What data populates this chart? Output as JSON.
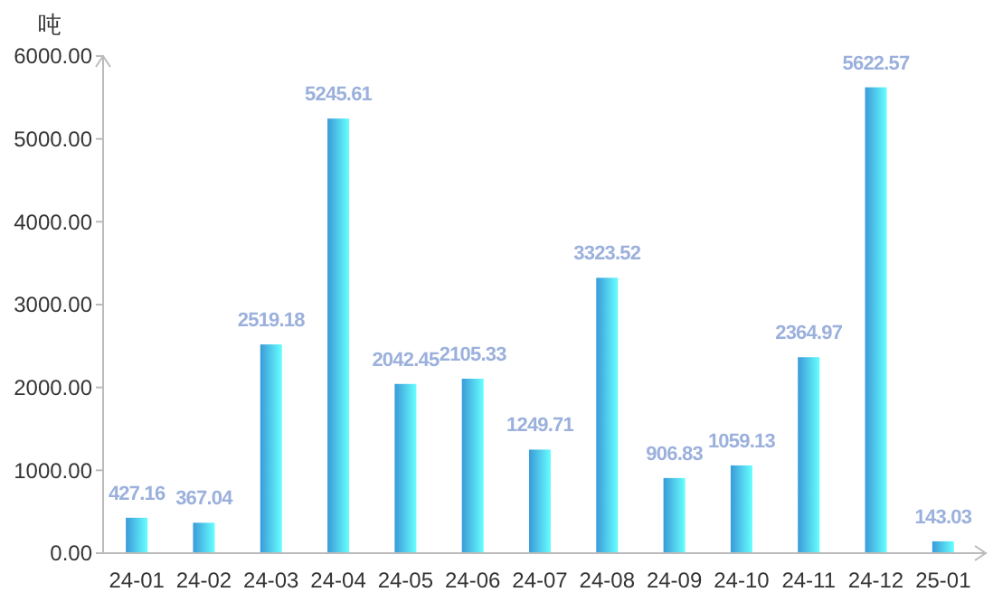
{
  "chart_data": {
    "type": "bar",
    "ylabel": "吨",
    "categories": [
      "24-01",
      "24-02",
      "24-03",
      "24-04",
      "24-05",
      "24-06",
      "24-07",
      "24-08",
      "24-09",
      "24-10",
      "24-11",
      "24-12",
      "25-01"
    ],
    "values": [
      427.16,
      367.04,
      2519.18,
      5245.61,
      2042.45,
      2105.33,
      1249.71,
      3323.52,
      906.83,
      1059.13,
      2364.97,
      5622.57,
      143.03
    ],
    "color": "#3a9ad8",
    "ylim": [
      0,
      6000
    ],
    "yticks": [
      {
        "value": 0,
        "label": "0.00"
      },
      {
        "value": 1000,
        "label": "1000.00"
      },
      {
        "value": 2000,
        "label": "2000.00"
      },
      {
        "value": 3000,
        "label": "3000.00"
      },
      {
        "value": 4000,
        "label": "4000.00"
      },
      {
        "value": 5000,
        "label": "5000.00"
      },
      {
        "value": 6000,
        "label": "6000.00"
      }
    ],
    "grid": false,
    "data_labels": true
  }
}
